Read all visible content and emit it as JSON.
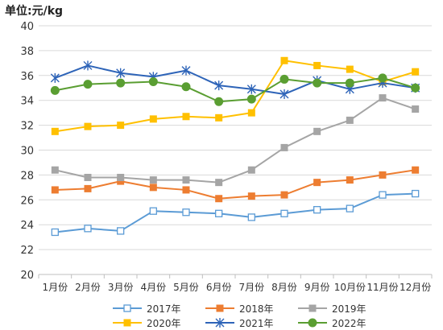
{
  "chart_data": {
    "type": "line",
    "unit_label": "单位:元/kg",
    "title": "",
    "xlabel": "",
    "ylabel": "",
    "categories": [
      "1月份",
      "2月份",
      "3月份",
      "4月份",
      "5月份",
      "6月份",
      "7月份",
      "8月份",
      "9月份",
      "10月份",
      "11月份",
      "12月份"
    ],
    "ylim": [
      20,
      40
    ],
    "yticks": [
      20,
      22,
      24,
      26,
      28,
      30,
      32,
      34,
      36,
      38,
      40
    ],
    "grid": true,
    "legend_position": "bottom",
    "series": [
      {
        "name": "2017年",
        "color": "#5b9bd5",
        "marker": "square-open",
        "values": [
          23.4,
          23.7,
          23.5,
          25.1,
          25.0,
          24.9,
          24.6,
          24.9,
          25.2,
          25.3,
          26.4,
          26.5
        ]
      },
      {
        "name": "2018年",
        "color": "#ed7d31",
        "marker": "square",
        "values": [
          26.8,
          26.9,
          27.5,
          27.0,
          26.8,
          26.1,
          26.3,
          26.4,
          27.4,
          27.6,
          28.0,
          28.4
        ]
      },
      {
        "name": "2019年",
        "color": "#a5a5a5",
        "marker": "square",
        "values": [
          28.4,
          27.8,
          27.8,
          27.6,
          27.6,
          27.4,
          28.4,
          30.2,
          31.5,
          32.4,
          34.2,
          33.3
        ]
      },
      {
        "name": "2020年",
        "color": "#ffc000",
        "marker": "square",
        "values": [
          31.5,
          31.9,
          32.0,
          32.5,
          32.7,
          32.6,
          33.0,
          37.2,
          36.8,
          36.5,
          35.5,
          36.3
        ]
      },
      {
        "name": "2021年",
        "color": "#2e64b8",
        "marker": "star",
        "values": [
          35.8,
          36.8,
          36.2,
          35.9,
          36.4,
          35.2,
          34.9,
          34.5,
          35.6,
          34.9,
          35.4,
          35.0
        ]
      },
      {
        "name": "2022年",
        "color": "#5a9e32",
        "marker": "circle",
        "values": [
          34.8,
          35.3,
          35.4,
          35.5,
          35.1,
          33.9,
          34.1,
          35.7,
          35.4,
          35.4,
          35.8,
          35.0
        ]
      }
    ]
  }
}
